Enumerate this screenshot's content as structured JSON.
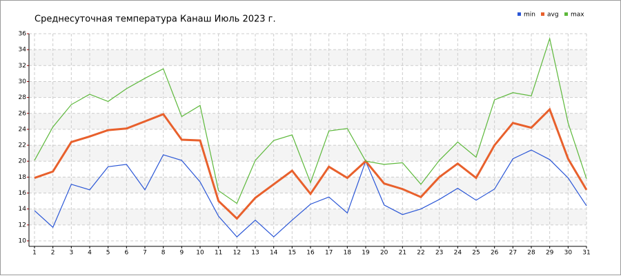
{
  "chart_data": {
    "type": "line",
    "title": "Среднесуточная температура Канаш  Июль 2023 г.",
    "x": [
      1,
      2,
      3,
      4,
      5,
      6,
      7,
      8,
      9,
      10,
      11,
      12,
      13,
      14,
      15,
      16,
      17,
      18,
      19,
      20,
      21,
      22,
      23,
      24,
      25,
      26,
      27,
      28,
      29,
      30,
      31
    ],
    "series": [
      {
        "name": "min",
        "color": "#2a56d6",
        "values": [
          13.8,
          11.7,
          17.1,
          16.4,
          19.3,
          19.6,
          16.4,
          20.8,
          20.1,
          17.4,
          13.1,
          10.5,
          12.6,
          10.5,
          12.6,
          14.6,
          15.5,
          13.5,
          20.0,
          14.5,
          13.3,
          14.0,
          15.2,
          16.6,
          15.1,
          16.5,
          20.3,
          21.4,
          20.2,
          17.9,
          14.4
        ]
      },
      {
        "name": "avg",
        "color": "#e8602c",
        "values": [
          17.9,
          18.7,
          22.4,
          23.1,
          23.9,
          24.1,
          25.0,
          25.9,
          22.7,
          22.6,
          15.0,
          12.8,
          15.4,
          17.1,
          18.8,
          15.9,
          19.3,
          17.9,
          20.0,
          17.2,
          16.5,
          15.5,
          18.0,
          19.7,
          17.9,
          22.0,
          24.8,
          24.2,
          26.5,
          20.3,
          16.4
        ]
      },
      {
        "name": "max",
        "color": "#5cb83a",
        "values": [
          20.1,
          24.3,
          27.1,
          28.4,
          27.5,
          29.1,
          30.4,
          31.6,
          25.6,
          27.0,
          16.3,
          14.7,
          20.1,
          22.6,
          23.3,
          17.3,
          23.8,
          24.1,
          20.0,
          19.6,
          19.8,
          17.1,
          20.1,
          22.4,
          20.5,
          27.7,
          28.6,
          28.2,
          35.4,
          24.8,
          17.8
        ]
      }
    ],
    "xlim": [
      1,
      31
    ],
    "xticks": [
      1,
      2,
      3,
      4,
      5,
      6,
      7,
      8,
      9,
      10,
      11,
      12,
      13,
      14,
      15,
      16,
      17,
      18,
      19,
      20,
      21,
      22,
      23,
      24,
      25,
      26,
      27,
      28,
      29,
      30,
      31
    ],
    "ylim": [
      10,
      36
    ],
    "yticks": [
      10,
      12,
      14,
      16,
      18,
      20,
      22,
      24,
      26,
      28,
      30,
      32,
      34,
      36
    ],
    "grid": true,
    "legend": "top-right"
  }
}
